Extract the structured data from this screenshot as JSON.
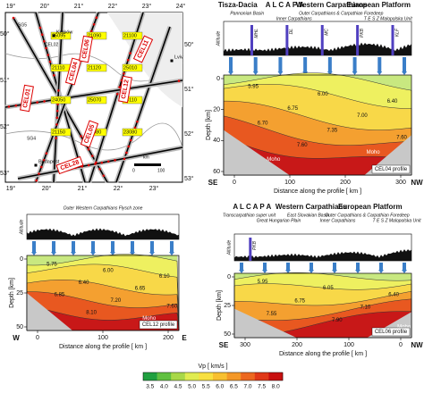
{
  "map": {
    "lon_top": [
      "19°",
      "20°",
      "21°",
      "22°",
      "23°",
      "24°"
    ],
    "lon_bottom": [
      "19°",
      "20°",
      "21°",
      "22°",
      "23°"
    ],
    "lat_left": [
      "50°",
      "51°",
      "52°",
      "53°"
    ],
    "lat_right": [
      "50°",
      "51°",
      "52°",
      "53°"
    ],
    "profiles": [
      "CEL01",
      "CEL04",
      "CEL05",
      "CEL06",
      "CEL11",
      "CEL12",
      "CEL28"
    ],
    "stations": [
      "25095",
      "21090",
      "21100",
      "21110",
      "21120",
      "25010",
      "24050",
      "25070",
      "25110",
      "21150",
      "28080",
      "23080"
    ],
    "cities": [
      "Kraków",
      "Lviv",
      "Budapest"
    ],
    "scale": [
      "km",
      "0",
      "100"
    ],
    "other": [
      "SG5",
      "SG4",
      "CEL02"
    ]
  },
  "cel04": {
    "headers": [
      "Tisza-Dacia",
      "A L C A P A",
      "Western Carpathians",
      "European Platform"
    ],
    "sub": [
      "Pannonian Basin",
      "Inner Carpathians",
      "Outer Carpathians & Carpathian Foredeep",
      "T E S Z Malopolska Unit"
    ],
    "markers": [
      "MHL",
      "DL",
      "MC",
      "PKB",
      "KLF"
    ],
    "altitude_label": "Altitude",
    "depth_label": "Depth [km]",
    "depth_ticks": [
      "0",
      "20",
      "40",
      "60"
    ],
    "xticks": [
      "0",
      "100",
      "200",
      "300"
    ],
    "xlabel": "Distance along the profile [ km ]",
    "ends": [
      "SE",
      "NW"
    ],
    "name": "CEL04 profile",
    "velocities": [
      "5.95",
      "6.00",
      "6.40",
      "6.75",
      "7.00",
      "6.70",
      "7.35",
      "7.60",
      "7.60",
      "Moho",
      "Moho"
    ]
  },
  "cel12": {
    "headers": [
      "Outer Western Carpathians Flysch zone"
    ],
    "altitude_label": "Altitude",
    "depth_label": "Depth [km]",
    "depth_ticks": [
      "0",
      "25",
      "50"
    ],
    "xticks": [
      "0",
      "100",
      "200"
    ],
    "xlabel": "Distance along the profile [ km ]",
    "ends": [
      "W",
      "E"
    ],
    "name": "CEL12 profile",
    "velocities": [
      "5.75",
      "6.00",
      "6.10",
      "6.40",
      "6.65",
      "6.85",
      "7.20",
      "7.60",
      "8.10",
      "Moho"
    ]
  },
  "cel06": {
    "headers": [
      "A L C A P A",
      "Western Carpathians",
      "European Platform"
    ],
    "sub": [
      "Transcarpathian super unit",
      "Great Hungarian Plain",
      "East Slovakian Basin",
      "Inner Carpathians",
      "Outer Carpathians & Carpathian Foredeep",
      "T E S Z Malopolska Unit"
    ],
    "markers": [
      "PKB"
    ],
    "altitude_label": "Altitude",
    "depth_label": "Depth [km]",
    "depth_ticks": [
      "0",
      "25",
      "50"
    ],
    "xticks": [
      "300",
      "200",
      "100",
      "0"
    ],
    "xlabel": "Distance along the profile [ km ]",
    "ends": [
      "SE",
      "NW"
    ],
    "name": "CEL06 profile",
    "velocities": [
      "5.95",
      "6.05",
      "6.40",
      "6.75",
      "7.10",
      "7.55",
      "7.90",
      "Moho"
    ]
  },
  "colorbar": {
    "label": "Vp [ km/s ]",
    "ticks": [
      "3.5",
      "4.0",
      "4.5",
      "5.0",
      "5.5",
      "6.0",
      "6.5",
      "7.0",
      "7.5",
      "8.0"
    ]
  }
}
